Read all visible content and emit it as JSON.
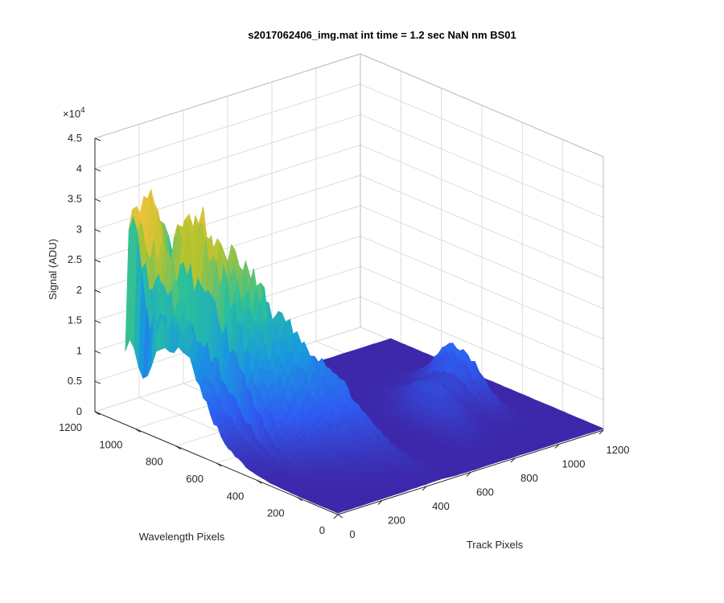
{
  "chart_data": {
    "type": "surface",
    "title": "s2017062406_img.mat int time = 1.2 sec  NaN nm BS01",
    "xlabel": "Track Pixels",
    "ylabel": "Wavelength Pixels",
    "zlabel": "Signal (ADU)",
    "z_exponent_label": "×10",
    "z_exponent_power": "4",
    "xlim": [
      0,
      1200
    ],
    "ylim": [
      0,
      1200
    ],
    "zlim": [
      0,
      45000
    ],
    "x_ticks": [
      "0",
      "200",
      "400",
      "600",
      "800",
      "1000",
      "1200"
    ],
    "y_ticks": [
      "0",
      "200",
      "400",
      "600",
      "800",
      "1000",
      "1200"
    ],
    "z_ticks": [
      "0",
      "0.5",
      "1",
      "1.5",
      "2",
      "2.5",
      "3",
      "3.5",
      "4",
      "4.5"
    ],
    "grid": true,
    "colormap": [
      "#3e26a8",
      "#2e5ef3",
      "#199ade",
      "#29c09c",
      "#b5c32e",
      "#f5c23d",
      "#f9fb15"
    ],
    "ridges": [
      {
        "x": 20,
        "peak_y": 1000,
        "peak": 38000
      },
      {
        "x": 150,
        "peak_y": 850,
        "peak": 33000
      },
      {
        "x": 250,
        "peak_y": 780,
        "peak": 27000
      },
      {
        "x": 350,
        "peak_y": 700,
        "peak": 18000
      },
      {
        "x": 450,
        "peak_y": 600,
        "peak": 11000
      }
    ],
    "secondary_bumps": [
      {
        "x": 1000,
        "peak_y": 500,
        "peak": 9000
      },
      {
        "x": 880,
        "peak_y": 480,
        "peak": 4000
      },
      {
        "x": 820,
        "peak_y": 420,
        "peak": 3000
      },
      {
        "x": 760,
        "peak_y": 360,
        "peak": 2500
      }
    ]
  }
}
